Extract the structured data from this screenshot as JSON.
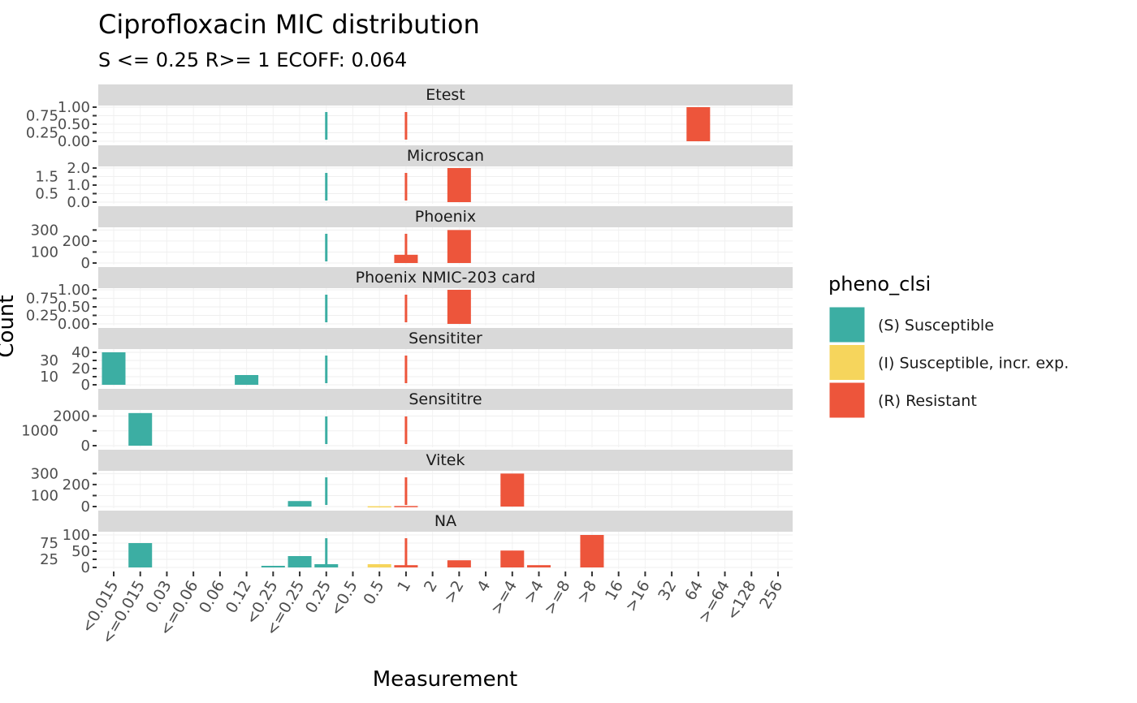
{
  "chart_data": {
    "type": "bar",
    "title": "Ciprofloxacin MIC distribution",
    "subtitle": "S <= 0.25 R>= 1 ECOFF: 0.064",
    "xlabel": "Measurement",
    "ylabel": "Count",
    "categories": [
      "<0.015",
      "<=0.015",
      "0.03",
      "<=0.06",
      "0.06",
      "0.12",
      "<0.25",
      "<=0.25",
      "0.25",
      "<0.5",
      "0.5",
      "1",
      "2",
      ">2",
      "4",
      ">=4",
      ">4",
      ">=8",
      ">8",
      "16",
      ">16",
      "32",
      "64",
      ">=64",
      "<128",
      "256"
    ],
    "legend": {
      "title": "pheno_clsi",
      "position": "right",
      "entries": [
        {
          "name": "(S) Susceptible",
          "color": "#3CAEA3"
        },
        {
          "name": "(I) Susceptible, incr. exp.",
          "color": "#F6D55C"
        },
        {
          "name": "(R) Resistant",
          "color": "#ED553B"
        }
      ]
    },
    "breakpoints": [
      {
        "category": "0.25",
        "class": "S",
        "color": "#3CAEA3"
      },
      {
        "category": "1",
        "class": "R",
        "color": "#ED553B"
      }
    ],
    "panels": [
      {
        "name": "Etest",
        "ylim": [
          0,
          1
        ],
        "yticks": [
          "0.00",
          "0.25",
          "0.50",
          "0.75",
          "1.00"
        ],
        "bars": [
          {
            "x": "64",
            "class": "R",
            "value": 1
          }
        ]
      },
      {
        "name": "Microscan",
        "ylim": [
          0,
          2
        ],
        "yticks": [
          "0.0",
          "0.5",
          "1.0",
          "1.5",
          "2.0"
        ],
        "bars": [
          {
            "x": ">2",
            "class": "R",
            "value": 2
          }
        ]
      },
      {
        "name": "Phoenix",
        "ylim": [
          0,
          310
        ],
        "yticks": [
          "0",
          "100",
          "200",
          "300"
        ],
        "bars": [
          {
            "x": "1",
            "class": "R",
            "value": 75
          },
          {
            "x": ">2",
            "class": "R",
            "value": 300
          }
        ]
      },
      {
        "name": "Phoenix NMIC-203 card",
        "ylim": [
          0,
          1
        ],
        "yticks": [
          "0.00",
          "0.25",
          "0.50",
          "0.75",
          "1.00"
        ],
        "bars": [
          {
            "x": ">2",
            "class": "R",
            "value": 1
          }
        ]
      },
      {
        "name": "Sensititer",
        "ylim": [
          0,
          42
        ],
        "yticks": [
          "0",
          "10",
          "20",
          "30",
          "40"
        ],
        "bars": [
          {
            "x": "<0.015",
            "class": "S",
            "value": 40
          },
          {
            "x": "0.12",
            "class": "S",
            "value": 12
          }
        ]
      },
      {
        "name": "Sensititre",
        "ylim": [
          0,
          2300
        ],
        "yticks": [
          "0",
          "1000",
          "2000"
        ],
        "bars": [
          {
            "x": "<=0.015",
            "class": "S",
            "value": 2200
          }
        ]
      },
      {
        "name": "Vitek",
        "ylim": [
          0,
          310
        ],
        "yticks": [
          "0",
          "100",
          "200",
          "300"
        ],
        "bars": [
          {
            "x": "<=0.25",
            "class": "S",
            "value": 50
          },
          {
            "x": "0.5",
            "class": "I",
            "value": 3
          },
          {
            "x": "1",
            "class": "R",
            "value": 5
          },
          {
            "x": ">=4",
            "class": "R",
            "value": 300
          }
        ]
      },
      {
        "name": "NA",
        "ylim": [
          0,
          105
        ],
        "yticks": [
          "0",
          "25",
          "50",
          "75",
          "100"
        ],
        "bars": [
          {
            "x": "<=0.015",
            "class": "S",
            "value": 75
          },
          {
            "x": "<0.25",
            "class": "S",
            "value": 5
          },
          {
            "x": "<=0.25",
            "class": "S",
            "value": 35
          },
          {
            "x": "0.25",
            "class": "S",
            "value": 10
          },
          {
            "x": "0.5",
            "class": "I",
            "value": 10
          },
          {
            "x": "1",
            "class": "R",
            "value": 7
          },
          {
            "x": ">2",
            "class": "R",
            "value": 22
          },
          {
            "x": ">=4",
            "class": "R",
            "value": 52
          },
          {
            "x": ">4",
            "class": "R",
            "value": 7
          },
          {
            "x": ">8",
            "class": "R",
            "value": 100
          }
        ]
      }
    ]
  }
}
